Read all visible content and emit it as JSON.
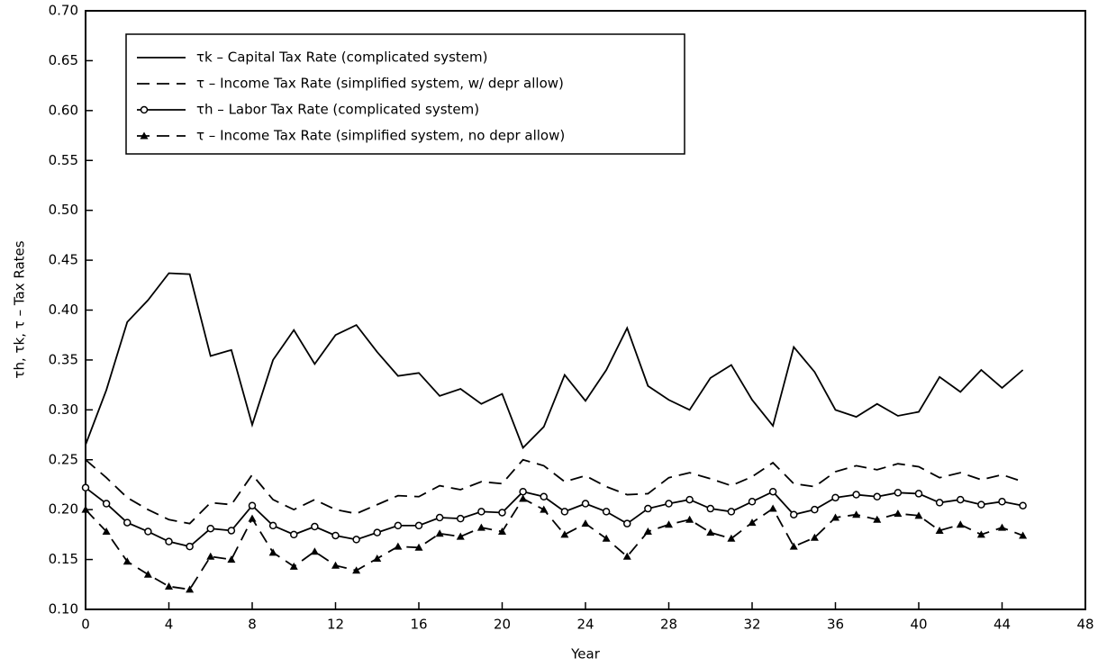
{
  "chart_data": {
    "type": "line",
    "xlabel": "Year",
    "ylabel": "τh, τk, τ – Tax Rates",
    "x": [
      0,
      1,
      2,
      3,
      4,
      5,
      6,
      7,
      8,
      9,
      10,
      11,
      12,
      13,
      14,
      15,
      16,
      17,
      18,
      19,
      20,
      21,
      22,
      23,
      24,
      25,
      26,
      27,
      28,
      29,
      30,
      31,
      32,
      33,
      34,
      35,
      36,
      37,
      38,
      39,
      40,
      41,
      42,
      43,
      44,
      45
    ],
    "series": [
      {
        "name": "τk – Capital Tax Rate (complicated system)",
        "color": "#000000",
        "dash": false,
        "marker": "none",
        "values": [
          0.265,
          0.32,
          0.388,
          0.41,
          0.437,
          0.436,
          0.354,
          0.36,
          0.285,
          0.35,
          0.38,
          0.346,
          0.375,
          0.385,
          0.358,
          0.334,
          0.337,
          0.314,
          0.321,
          0.306,
          0.316,
          0.262,
          0.283,
          0.335,
          0.309,
          0.34,
          0.382,
          0.324,
          0.31,
          0.3,
          0.332,
          0.345,
          0.31,
          0.284,
          0.363,
          0.338,
          0.3,
          0.293,
          0.306,
          0.294,
          0.298,
          0.333,
          0.318,
          0.34,
          0.322,
          0.34
        ]
      },
      {
        "name": "τ – Income Tax Rate (simplified system, w/ depr allow)",
        "color": "#000000",
        "dash": true,
        "marker": "none",
        "values": [
          0.25,
          0.232,
          0.212,
          0.2,
          0.19,
          0.186,
          0.207,
          0.205,
          0.235,
          0.21,
          0.2,
          0.21,
          0.2,
          0.196,
          0.205,
          0.214,
          0.213,
          0.224,
          0.22,
          0.228,
          0.226,
          0.25,
          0.244,
          0.228,
          0.234,
          0.223,
          0.215,
          0.216,
          0.232,
          0.237,
          0.231,
          0.224,
          0.233,
          0.247,
          0.226,
          0.223,
          0.238,
          0.244,
          0.24,
          0.246,
          0.243,
          0.232,
          0.237,
          0.23,
          0.235,
          0.228
        ]
      },
      {
        "name": "τh – Labor Tax Rate (complicated system)",
        "color": "#000000",
        "dash": false,
        "marker": "circle",
        "values": [
          0.222,
          0.206,
          0.187,
          0.178,
          0.168,
          0.163,
          0.181,
          0.179,
          0.204,
          0.184,
          0.175,
          0.183,
          0.174,
          0.17,
          0.177,
          0.184,
          0.184,
          0.192,
          0.191,
          0.198,
          0.197,
          0.218,
          0.213,
          0.198,
          0.206,
          0.198,
          0.186,
          0.201,
          0.206,
          0.21,
          0.201,
          0.198,
          0.208,
          0.218,
          0.195,
          0.2,
          0.212,
          0.215,
          0.213,
          0.217,
          0.216,
          0.207,
          0.21,
          0.205,
          0.208,
          0.204
        ]
      },
      {
        "name": "τ – Income Tax Rate (simplified system, no depr allow)",
        "color": "#000000",
        "dash": true,
        "marker": "triangle",
        "values": [
          0.2,
          0.178,
          0.148,
          0.135,
          0.123,
          0.12,
          0.153,
          0.15,
          0.191,
          0.157,
          0.143,
          0.158,
          0.144,
          0.139,
          0.151,
          0.163,
          0.162,
          0.176,
          0.173,
          0.182,
          0.178,
          0.211,
          0.2,
          0.175,
          0.186,
          0.171,
          0.153,
          0.178,
          0.185,
          0.19,
          0.177,
          0.171,
          0.187,
          0.201,
          0.163,
          0.172,
          0.192,
          0.195,
          0.19,
          0.196,
          0.194,
          0.179,
          0.185,
          0.175,
          0.182,
          0.174
        ]
      }
    ],
    "xlim": [
      0,
      48
    ],
    "xticks": [
      0,
      4,
      8,
      12,
      16,
      20,
      24,
      28,
      32,
      36,
      40,
      44,
      48
    ],
    "ylim": [
      0.1,
      0.7
    ],
    "yticks": [
      {
        "value": 0.1,
        "label": "0.10"
      },
      0.15,
      {
        "value": 0.2,
        "label": "0.20"
      },
      0.25,
      {
        "value": 0.3,
        "label": "0.30"
      },
      0.35,
      {
        "value": 0.4,
        "label": "0.40"
      },
      0.45,
      {
        "value": 0.5,
        "label": "0.50"
      },
      0.55,
      {
        "value": 0.6,
        "label": "0.60"
      },
      0.65,
      {
        "value": 0.7,
        "label": "0.70"
      }
    ],
    "legend": "upper left"
  }
}
